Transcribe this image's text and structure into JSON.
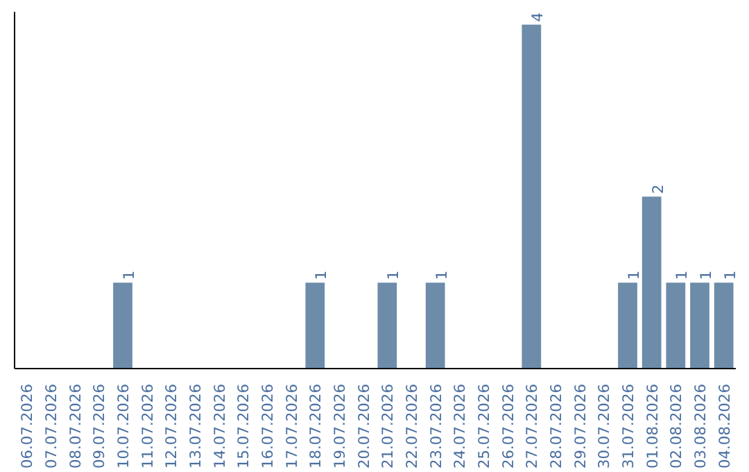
{
  "chart_data": {
    "type": "bar",
    "categories": [
      "06.07.2026",
      "07.07.2026",
      "08.07.2026",
      "09.07.2026",
      "10.07.2026",
      "11.07.2026",
      "12.07.2026",
      "13.07.2026",
      "14.07.2026",
      "15.07.2026",
      "16.07.2026",
      "17.07.2026",
      "18.07.2026",
      "19.07.2026",
      "20.07.2026",
      "21.07.2026",
      "22.07.2026",
      "23.07.2026",
      "24.07.2026",
      "25.07.2026",
      "26.07.2026",
      "27.07.2026",
      "28.07.2026",
      "29.07.2026",
      "30.07.2026",
      "31.07.2026",
      "01.08.2026",
      "02.08.2026",
      "03.08.2026",
      "04.08.2026"
    ],
    "values": [
      0,
      0,
      0,
      0,
      1,
      0,
      0,
      0,
      0,
      0,
      0,
      0,
      1,
      0,
      0,
      1,
      0,
      1,
      0,
      0,
      0,
      4,
      0,
      0,
      0,
      1,
      2,
      1,
      1,
      1
    ],
    "value_labels": [
      null,
      null,
      null,
      null,
      "1",
      null,
      null,
      null,
      null,
      null,
      null,
      null,
      "1",
      null,
      null,
      "1",
      null,
      "1",
      null,
      null,
      null,
      "4",
      null,
      null,
      null,
      "1",
      "2",
      "1",
      "1",
      "1"
    ],
    "color": "#6d8caa",
    "ylim": [
      0,
      4.15
    ],
    "grid": false,
    "tick_labels": "x"
  }
}
